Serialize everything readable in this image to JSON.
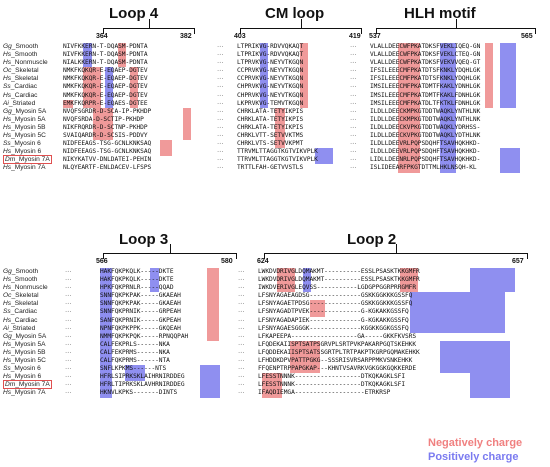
{
  "top": {
    "loop4": {
      "title": "Loop 4",
      "start": "364",
      "end": "382"
    },
    "cm": {
      "title": "CM loop",
      "start": "403",
      "end": "419"
    },
    "hlh": {
      "title": "HLH motif",
      "start": "537",
      "end": "565"
    }
  },
  "bottom": {
    "loop3": {
      "title": "Loop 3",
      "start": "566",
      "end": "580"
    },
    "loop2": {
      "title": "Loop 2",
      "start": "624",
      "end": "657"
    }
  },
  "species_top": [
    {
      "g": "Gg",
      "n": "_Smooth"
    },
    {
      "g": "Hs",
      "n": "_Smooth"
    },
    {
      "g": "Hs",
      "n": "_Nonmuscle"
    },
    {
      "g": "Oc",
      "n": "_Skeletal"
    },
    {
      "g": "Hs",
      "n": "_Skeletal"
    },
    {
      "g": "Ss",
      "n": "_Cardiac"
    },
    {
      "g": "Hs",
      "n": "_Cardiac"
    },
    {
      "g": "Ai",
      "n": "_Striated"
    },
    {
      "g": "Gg",
      "n": "_Myosin 5A"
    },
    {
      "g": "Hs",
      "n": "_Myosin 5A"
    },
    {
      "g": "Hs",
      "n": "_Myosin 5B"
    },
    {
      "g": "Hs",
      "n": "_Myosin 5C"
    },
    {
      "g": "Ss",
      "n": "_Myosin 6"
    },
    {
      "g": "Hs",
      "n": "_Myosin 6"
    },
    {
      "g": "Dm",
      "n": "_Myosin 7A"
    },
    {
      "g": "Hs",
      "n": "_Myosin 7A"
    }
  ],
  "species_bottom": [
    {
      "g": "Gg",
      "n": "_Smooth"
    },
    {
      "g": "Hs",
      "n": "_Smooth"
    },
    {
      "g": "Hs",
      "n": "_Nonmuscle"
    },
    {
      "g": "Oc",
      "n": "_Skeletal"
    },
    {
      "g": "Hs",
      "n": "_Skeletal"
    },
    {
      "g": "Ss",
      "n": "_Cardiac"
    },
    {
      "g": "Hs",
      "n": "_Cardiac"
    },
    {
      "g": "Ai",
      "n": "_Striated"
    },
    {
      "g": "Gg",
      "n": "_Myosin 5A"
    },
    {
      "g": "Hs",
      "n": "_Myosin 5A"
    },
    {
      "g": "Hs",
      "n": "_Myosin 5B"
    },
    {
      "g": "Hs",
      "n": "_Myosin 5C"
    },
    {
      "g": "Ss",
      "n": "_Myosin 6"
    },
    {
      "g": "Hs",
      "n": "_Myosin 6"
    },
    {
      "g": "Dm",
      "n": "_Myosin 7A"
    },
    {
      "g": "Hs",
      "n": "_Myosin 7A"
    }
  ],
  "highlighted_species_index": 14,
  "seq_loop4": [
    "NIVFKKERN-T-DQASM-PDNTA",
    "NIVFKKERN-T-DQASM-PDNTA",
    "NIALKKERN-T-DQASM-PDNTA",
    "NMKFKQKQR-E-EQAEP-DGTEV",
    "NMKFKQKQR-E-EQAEP-DGTEV",
    "NMKFKQKQR-E-EQAEP-DGTEV",
    "NMKFKQKQR-E-EQAEP-DGTEV",
    "EMKFKQRPR-E-EQAES-DGTEE",
    "NVQFSGRDR-D-SCA-IP-PKHDP",
    "NVQFSRDA-D-SCTIP-PKHDP",
    "NIKFRQRDR-D-SCTNP-PKHDP",
    "SVAIQARDR-D-SCSIS-PDDVY",
    "NIDFEEAGS-TSG-GCNLKNKSAQ",
    "NIDFEEAGS-TSG-GCNLKNKSAQ",
    "NIKYKATVV-DNLDATEI-PEHIN",
    "NLQYEARTF-ENLDACEV-LFSPS"
  ],
  "seq_cm": [
    "LTPRIKVG-RDVVQKAQT",
    "LTPRIKVG-RDVVQKAQT",
    "LTPRVKVG-NEYVTKGQN",
    "CCPRVKVG-NEYVTKGQN",
    "CCPRVKVG-NEYVTKGQN",
    "CHPRVKVG-NEYVTKGQN",
    "CHPRVKVG-NEYVTKGQN",
    "LKPRVKVG-TEMVTKGQN",
    "CHRKLATA-TETYIKPIS",
    "CHRKLATA-TETYIKPIS",
    "CHRKLATA-TETYIKPIS",
    "CHRKLVTT-SETVVKTMS",
    "CHRKLVTS-SETVVKPMT",
    "TTRVMLTTAGGTKGTVIKVPLK",
    "TTRVMLTTAGGTKGTVIKVPLK",
    "TRTTLFAH-GETVVSTLS"
  ],
  "seq_hlh": [
    "VLALLDEECWFPKATDKSFVEKLIQEQ-GN",
    "VLALLDEECWFPKATDKSFVEKLCTEQ-GN",
    "VLALLDEECWFPKATDKSFVEKVVQEQ-GT",
    "IFSILEEECMFPKATDTSFKNKLYDQHLGK",
    "IFSILEEECMFPKATDTSFKNKLYDQHLGK",
    "IMSILEEECMFPKATDMTFKAKLYDNHLGK",
    "IMSILEEECMFPKATDMTFKAKLFDNHLGK",
    "IMSILEEECMFPKATDLTFKTKLFDNHLGK",
    "ILDLLDEECKMPKGTDDTWAQKLYNTHLNK",
    "ILDLLDEECKMPKGTDDTWAQKLYNTHLNK",
    "ILDLLDEECKVPKGTDDTWAQKLYDRHSS-",
    "ILDLLDEECKVPKGTDDTWAQKLYDTHLNK",
    "ILDLLDEEVRLPQPSDQHFTSAVHQKHKD-",
    "ILDLLDEEVRLPQPSDQHFTSAVHQKHKD-",
    "LIDLLDEENRLPQPSDQHFTSAVHQKHKD-",
    "ISLIDEEARFPKGTDTTMLHKLNSQH-KL"
  ],
  "seq_loop3": [
    "HAKFQKPKQLK-----DKTE",
    "HAKFQKPKQLK-----DKTE",
    "HPKFQKPRNLR-----QQAD",
    "SNNFQKPKPAK-----GKAEAH",
    "SNNFQKPKPAK-----GKAEAH",
    "SNNFQKPRNIK-----GRPEAH",
    "SANFQKPRNIK-----GKPEAH",
    "NPNFQKPKPPK-----GKQEAH",
    "NMMFQKPKPQK-----RPNQQPAH",
    "CALFEKPRLS------NKA",
    "CALFEKPRMS------NKA",
    "CALFQKPRMS------NTA",
    "SNFLKPKMS------NTS",
    "HFRLSIPRKSKLAIHRNIRDDEG",
    "HFRLTIPRKSKLAVHRNIRDDEG",
    "HKNVLKPKS-------DINTS"
  ],
  "seq_loop2": [
    "LWKDVDRIVGLDQMAKMT----------ESSLPSASKTKKGMFR",
    "LWKDVDRIVGLDQMAKMT----------ESSLPSASKTKKGMFR",
    "IWKDVERIVGLEQVSS-----------LGDGPPGGRPRRGMFR",
    "LFSNYAGAEAGDSG--------------GSKKGGKKKGSSFQ",
    "LFSNYAGAETPDSG--------------GSKKGGKKKGSSFQ",
    "LFSNYAGADTPVEK--------------G-KGKAKKGSSFQ",
    "LFSNYAGADAPIEK--------------G-KGKAKKGSSFQ",
    "LFSNYAGAESGGGK--------------KGGKKGGKGSSFQ",
    "LFKAPEEPA------------------GA-----GKKFKVSRS",
    "LFQDEKAIISPTSATPSGRVPLSRTPVKPAKARPGQTSKEHKK",
    "LFQDDEKAIISPTSATSSGRTPLTRTPAKPTKGRPGQMAKEHKK",
    "LFHDDKDPVPATTPGKG--SSSRISVRSARPPMKVSNKEHKK",
    "FFQENPTRPPAPGKAP---KHNTVSAVRKVGKGGKGQKKERDE",
    "LFESSTNNNK------------------DTKQKAGKLSFI",
    "LFESSTNNNK------------------DTKQKAGKLSFI",
    "IFAQDIEMGA-------------------ETRKRSP"
  ],
  "legend": {
    "neg": "Negatively charge",
    "pos": "Positively charge"
  },
  "colors": {
    "negative": "#f09a9a",
    "positive": "#8f8ff0",
    "legend_neg": "#f08080",
    "legend_pos": "#7b7bf0"
  }
}
